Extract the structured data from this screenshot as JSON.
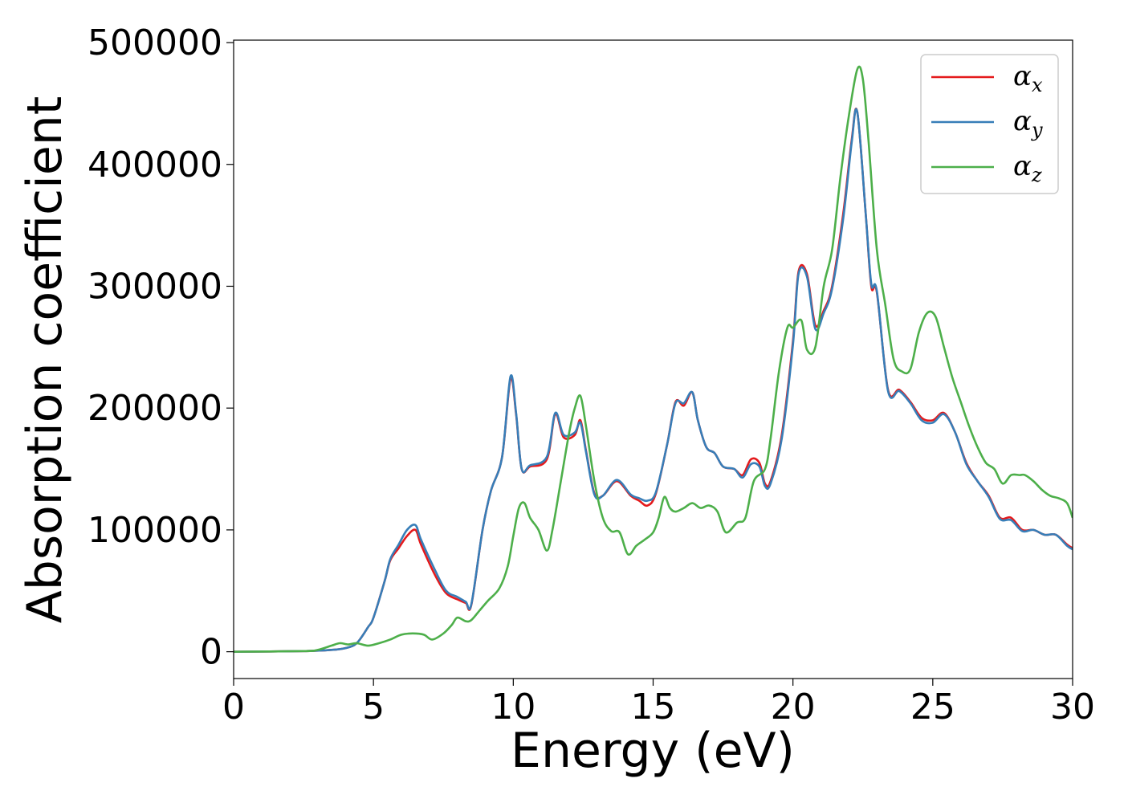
{
  "chart_data": {
    "type": "line",
    "title": "",
    "xlabel": "Energy (eV)",
    "ylabel": "Absorption coefficient",
    "xlim": [
      0,
      30
    ],
    "ylim": [
      -22000,
      502000
    ],
    "x_ticks": [
      "0",
      "5",
      "10",
      "15",
      "20",
      "25",
      "30"
    ],
    "y_ticks": [
      "0",
      "100000",
      "200000",
      "300000",
      "400000",
      "500000"
    ],
    "grid": false,
    "legend_position": "top-right",
    "series": [
      {
        "name": "α_x",
        "symbol": "α",
        "subscript": "x",
        "color": "#e41a1c",
        "x": [
          0,
          2.5,
          3.5,
          4,
          4.4,
          4.8,
          5,
          5.4,
          5.6,
          5.9,
          6.2,
          6.5,
          6.7,
          7.2,
          7.6,
          8,
          8.3,
          8.5,
          8.9,
          9.2,
          9.6,
          9.9,
          10.1,
          10.3,
          10.6,
          11.2,
          11.5,
          11.8,
          12.2,
          12.4,
          12.6,
          12.9,
          13.2,
          13.7,
          14.2,
          14.5,
          14.8,
          15.1,
          15.5,
          15.8,
          16.1,
          16.4,
          16.6,
          16.9,
          17.2,
          17.5,
          17.9,
          18.2,
          18.5,
          18.8,
          19,
          19.2,
          19.6,
          20,
          20.2,
          20.5,
          20.8,
          21.1,
          21.4,
          21.8,
          22.1,
          22.3,
          22.6,
          22.8,
          23,
          23.4,
          23.8,
          24.2,
          24.6,
          25,
          25.4,
          25.8,
          26.2,
          26.6,
          27,
          27.4,
          27.8,
          28.2,
          28.6,
          29,
          29.4,
          29.8,
          30
        ],
        "values": [
          0,
          500,
          1500,
          3000,
          7000,
          20000,
          28000,
          58000,
          75000,
          85000,
          95000,
          100000,
          88000,
          63000,
          48000,
          43000,
          40000,
          38500,
          100000,
          132000,
          160000,
          224000,
          195000,
          150000,
          152000,
          158000,
          195000,
          176000,
          178000,
          190000,
          165000,
          130000,
          128000,
          140000,
          128000,
          124000,
          120000,
          130000,
          170000,
          205000,
          202000,
          213000,
          190000,
          168000,
          163000,
          152000,
          150000,
          145000,
          158000,
          155000,
          138000,
          140000,
          178000,
          255000,
          312000,
          310000,
          268000,
          280000,
          300000,
          360000,
          420000,
          443000,
          360000,
          300000,
          295000,
          215000,
          215000,
          205000,
          192000,
          190000,
          196000,
          180000,
          155000,
          140000,
          128000,
          110000,
          110000,
          100000,
          100000,
          96000,
          96000,
          88000,
          85000
        ]
      },
      {
        "name": "α_y",
        "symbol": "α",
        "subscript": "y",
        "color": "#377eb8",
        "x": [
          0,
          2.5,
          3.5,
          4,
          4.4,
          4.8,
          5,
          5.4,
          5.6,
          5.9,
          6.2,
          6.5,
          6.7,
          7.2,
          7.6,
          8,
          8.3,
          8.5,
          8.9,
          9.2,
          9.6,
          9.9,
          10.1,
          10.3,
          10.6,
          11.2,
          11.5,
          11.8,
          12.2,
          12.4,
          12.6,
          12.9,
          13.2,
          13.7,
          14.2,
          14.5,
          14.8,
          15.1,
          15.5,
          15.8,
          16.1,
          16.4,
          16.6,
          16.9,
          17.2,
          17.5,
          17.9,
          18.2,
          18.5,
          18.8,
          19,
          19.2,
          19.6,
          20,
          20.2,
          20.5,
          20.8,
          21.1,
          21.4,
          21.8,
          22.1,
          22.3,
          22.6,
          22.8,
          23,
          23.4,
          23.8,
          24.2,
          24.6,
          25,
          25.4,
          25.8,
          26.2,
          26.6,
          27,
          27.4,
          27.8,
          28.2,
          28.6,
          29,
          29.4,
          29.8,
          30
        ],
        "values": [
          0,
          500,
          1500,
          3000,
          7000,
          20000,
          28000,
          58000,
          76000,
          88000,
          100000,
          104000,
          92000,
          67000,
          50000,
          45000,
          41000,
          39000,
          100000,
          132000,
          160000,
          226000,
          196000,
          150000,
          153000,
          160000,
          196000,
          178000,
          180000,
          188000,
          164000,
          129000,
          128000,
          141000,
          129000,
          126000,
          124000,
          131000,
          170000,
          204000,
          204000,
          213000,
          190000,
          168000,
          163000,
          152000,
          150000,
          143000,
          154000,
          152000,
          136000,
          138000,
          175000,
          252000,
          310000,
          308000,
          265000,
          278000,
          298000,
          356000,
          418000,
          443000,
          360000,
          302000,
          296000,
          214000,
          214000,
          204000,
          190000,
          188000,
          195000,
          180000,
          154000,
          140000,
          127000,
          109000,
          108000,
          99000,
          100000,
          96000,
          96000,
          87000,
          84000
        ]
      },
      {
        "name": "α_z",
        "symbol": "α",
        "subscript": "z",
        "color": "#4daf4a",
        "x": [
          0,
          2.5,
          3,
          3.5,
          3.8,
          4.1,
          4.4,
          4.8,
          5.2,
          5.6,
          6,
          6.4,
          6.8,
          7.1,
          7.5,
          7.8,
          8,
          8.3,
          8.5,
          8.8,
          9.1,
          9.5,
          9.8,
          10,
          10.2,
          10.4,
          10.6,
          10.9,
          11.2,
          11.4,
          11.7,
          12,
          12.2,
          12.4,
          12.6,
          12.9,
          13.2,
          13.5,
          13.8,
          14.1,
          14.4,
          14.7,
          15,
          15.2,
          15.4,
          15.6,
          15.8,
          16.1,
          16.4,
          16.7,
          17,
          17.3,
          17.6,
          18,
          18.3,
          18.6,
          19,
          19.2,
          19.5,
          19.8,
          20,
          20.3,
          20.5,
          20.8,
          21.1,
          21.4,
          21.7,
          22,
          22.3,
          22.5,
          22.7,
          23,
          23.3,
          23.6,
          23.9,
          24.2,
          24.5,
          24.8,
          25.1,
          25.4,
          25.7,
          26,
          26.3,
          26.6,
          26.9,
          27.2,
          27.5,
          27.8,
          28.1,
          28.3,
          28.6,
          28.9,
          29.2,
          29.5,
          29.8,
          30
        ],
        "values": [
          0,
          500,
          1500,
          5000,
          7000,
          6000,
          7000,
          5000,
          7000,
          10000,
          14000,
          15000,
          14000,
          10000,
          15000,
          22000,
          28000,
          25000,
          26000,
          34000,
          42000,
          52000,
          70000,
          95000,
          118000,
          122000,
          110000,
          100000,
          83000,
          100000,
          140000,
          180000,
          200000,
          210000,
          185000,
          140000,
          110000,
          99000,
          98000,
          80000,
          87000,
          92000,
          98000,
          110000,
          127000,
          118000,
          115000,
          118000,
          122000,
          118000,
          120000,
          115000,
          98000,
          106000,
          110000,
          140000,
          150000,
          175000,
          230000,
          266000,
          266000,
          272000,
          248000,
          250000,
          300000,
          330000,
          390000,
          440000,
          478000,
          470000,
          420000,
          330000,
          285000,
          240000,
          230000,
          232000,
          262000,
          278000,
          275000,
          250000,
          225000,
          205000,
          185000,
          168000,
          155000,
          150000,
          138000,
          145000,
          145000,
          145000,
          140000,
          133000,
          128000,
          126000,
          122000,
          110000
        ]
      }
    ]
  }
}
